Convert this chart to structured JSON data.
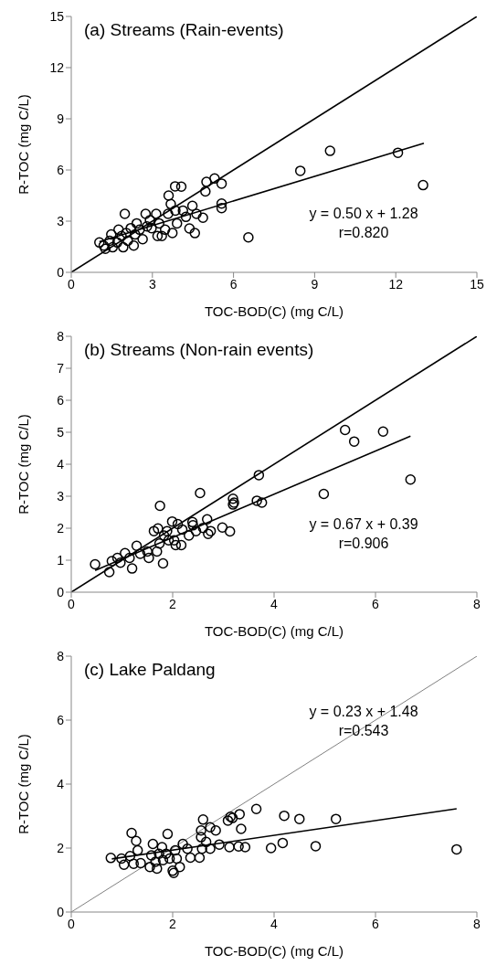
{
  "chart_data": [
    {
      "type": "scatter",
      "title": "(a) Streams (Rain-events)",
      "xlabel": "TOC-BOD(C) (mg C/L)",
      "ylabel": "R-TOC (mg C/L)",
      "annotations": [
        "y = 0.50 x + 1.28",
        "r=0.820"
      ],
      "xlim": [
        0,
        15
      ],
      "ylim": [
        0,
        15
      ],
      "xticks": [
        0,
        3,
        6,
        9,
        12,
        15
      ],
      "yticks": [
        0,
        3,
        6,
        9,
        12,
        15
      ],
      "line_style": "solid",
      "series": [
        {
          "marker": "circle",
          "color": "#000000",
          "x": [
            1.04,
            1.2,
            1.26,
            1.42,
            1.48,
            1.53,
            1.7,
            1.75,
            1.86,
            1.92,
            1.98,
            2.03,
            2.09,
            2.2,
            2.31,
            2.36,
            2.42,
            2.53,
            2.64,
            2.75,
            2.8,
            2.91,
            2.97,
            3.14,
            3.19,
            3.25,
            3.35,
            3.47,
            3.58,
            3.6,
            3.68,
            3.74,
            3.85,
            3.91,
            3.84,
            4.07,
            4.13,
            4.24,
            4.37,
            4.48,
            4.57,
            4.63,
            4.87,
            4.96,
            5.0,
            5.3,
            5.56,
            5.56,
            5.56,
            6.55,
            8.47,
            9.57,
            12.08,
            13.01
          ],
          "values": [
            1.75,
            1.57,
            1.38,
            1.85,
            2.22,
            1.47,
            1.75,
            2.5,
            2.13,
            1.47,
            3.43,
            2.31,
            1.85,
            2.59,
            1.57,
            2.22,
            2.87,
            2.5,
            1.94,
            3.43,
            2.69,
            3.06,
            2.59,
            3.43,
            2.13,
            2.87,
            2.13,
            2.5,
            3.43,
            4.5,
            4.0,
            2.31,
            3.62,
            2.87,
            5.04,
            5.02,
            3.62,
            3.25,
            2.57,
            3.9,
            2.3,
            3.43,
            3.2,
            4.74,
            5.3,
            5.5,
            5.2,
            4.03,
            3.77,
            2.05,
            5.95,
            7.12,
            7.01,
            5.11
          ]
        },
        {
          "type": "line",
          "color": "#000000",
          "x": [
            0,
            15
          ],
          "values": [
            0,
            15
          ]
        },
        {
          "type": "line",
          "color": "#000000",
          "x": [
            1.04,
            13.04
          ],
          "values": [
            1.8,
            7.57
          ]
        }
      ]
    },
    {
      "type": "scatter",
      "title": "(b) Streams (Non-rain events)",
      "xlabel": "TOC-BOD(C) (mg C/L)",
      "ylabel": "R-TOC (mg C/L)",
      "annotations": [
        "y = 0.67 x + 0.39",
        "r=0.906"
      ],
      "xlim": [
        0,
        8
      ],
      "ylim": [
        0,
        8
      ],
      "xticks": [
        0,
        2,
        4,
        6,
        8
      ],
      "yticks": [
        0,
        1,
        2,
        3,
        4,
        5,
        6,
        7,
        8
      ],
      "line_style": "solid",
      "series": [
        {
          "marker": "circle",
          "color": "#000000",
          "x": [
            0.47,
            0.75,
            0.8,
            0.91,
            0.97,
            1.06,
            1.15,
            1.2,
            1.29,
            1.36,
            1.5,
            1.53,
            1.63,
            1.71,
            1.75,
            1.81,
            1.69,
            1.74,
            1.83,
            1.89,
            1.92,
            1.99,
            2.03,
            2.06,
            2.1,
            2.17,
            2.19,
            2.32,
            2.39,
            2.4,
            2.46,
            2.54,
            2.6,
            2.68,
            2.7,
            2.75,
            2.98,
            3.13,
            3.19,
            3.21,
            3.19,
            3.66,
            3.76,
            3.7,
            4.98,
            5.4,
            5.58,
            6.15,
            6.69
          ],
          "values": [
            0.87,
            0.63,
            0.97,
            1.07,
            0.92,
            1.22,
            1.07,
            0.74,
            1.45,
            1.2,
            1.27,
            1.07,
            1.91,
            1.99,
            2.7,
            0.9,
            1.27,
            1.52,
            1.77,
            1.91,
            1.62,
            2.21,
            1.62,
            1.47,
            2.13,
            1.47,
            1.96,
            1.77,
            2.19,
            2.09,
            1.91,
            3.1,
            2.01,
            2.28,
            1.82,
            1.91,
            2.02,
            1.9,
            2.92,
            2.8,
            2.74,
            2.86,
            2.8,
            3.66,
            3.07,
            5.07,
            4.71,
            5.02,
            3.52
          ]
        },
        {
          "type": "line",
          "color": "#000000",
          "x": [
            0,
            8
          ],
          "values": [
            0,
            8
          ]
        },
        {
          "type": "line",
          "color": "#000000",
          "x": [
            0.47,
            6.69
          ],
          "values": [
            0.68,
            4.88
          ]
        }
      ]
    },
    {
      "type": "scatter",
      "title": "(c) Lake Paldang",
      "xlabel": "TOC-BOD(C) (mg C/L)",
      "ylabel": "R-TOC (mg C/L)",
      "annotations": [
        "y = 0.23 x + 1.48",
        "r=0.543"
      ],
      "xlim": [
        0,
        8
      ],
      "ylim": [
        0,
        8
      ],
      "xticks": [
        0,
        2,
        4,
        6,
        8
      ],
      "yticks": [
        0,
        2,
        4,
        6,
        8
      ],
      "line_style": "solid",
      "series": [
        {
          "marker": "circle",
          "color": "#000000",
          "x": [
            0.78,
            0.99,
            1.04,
            1.16,
            1.19,
            1.23,
            1.28,
            1.31,
            1.37,
            1.55,
            1.58,
            1.61,
            1.66,
            1.69,
            1.73,
            1.79,
            1.81,
            1.87,
            1.9,
            1.94,
            2.0,
            2.02,
            2.05,
            2.08,
            2.14,
            2.2,
            2.29,
            2.35,
            2.53,
            2.56,
            2.56,
            2.6,
            2.58,
            2.66,
            2.74,
            2.74,
            2.85,
            2.92,
            3.09,
            3.14,
            3.18,
            3.12,
            3.3,
            3.35,
            3.32,
            3.43,
            3.65,
            4.2,
            4.5,
            5.22,
            3.94,
            4.17,
            4.82,
            7.6
          ],
          "values": [
            1.69,
            1.67,
            1.48,
            1.75,
            2.47,
            1.51,
            2.22,
            1.93,
            1.53,
            1.41,
            1.77,
            2.13,
            1.57,
            1.36,
            1.82,
            2.03,
            1.62,
            1.82,
            2.44,
            1.67,
            1.29,
            1.22,
            1.93,
            1.67,
            1.41,
            2.13,
            1.98,
            1.7,
            1.7,
            2.34,
            2.55,
            2.89,
            1.98,
            2.19,
            2.65,
            1.98,
            2.55,
            2.11,
            2.86,
            2.98,
            2.94,
            2.03,
            2.05,
            2.6,
            3.06,
            2.03,
            3.22,
            3.01,
            2.91,
            2.91,
            2.0,
            2.16,
            2.06,
            1.96
          ]
        },
        {
          "type": "line",
          "color": "#808080",
          "x": [
            0,
            8
          ],
          "values": [
            0,
            8
          ]
        },
        {
          "type": "line",
          "color": "#000000",
          "x": [
            0.8,
            7.6
          ],
          "values": [
            1.66,
            3.23
          ]
        }
      ]
    }
  ]
}
